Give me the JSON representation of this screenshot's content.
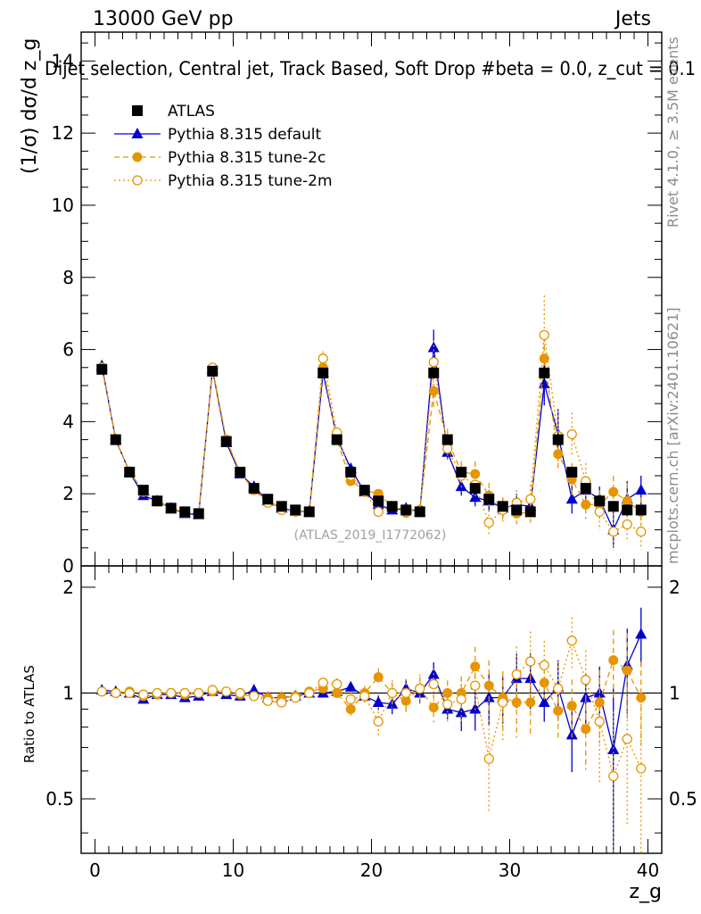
{
  "header": {
    "left": "13000 GeV pp",
    "right": "Jets",
    "title": "Dijet selection, Central jet, Track Based, Soft Drop #beta = 0.0, z_cut = 0.1",
    "side_left": "Rivet 4.1.0, ≥ 3.5M events",
    "side_right": "mcplots.cern.ch [arXiv:2401.10621]",
    "watermark": "(ATLAS_2019_I1772062)"
  },
  "colors": {
    "data": "#000000",
    "default": "#0000cc",
    "tune2c": "#e69500",
    "tune2m": "#e69500"
  },
  "chart_data": [
    {
      "type": "line",
      "panel": "main",
      "ylabel": "(1/σ) dσ/d z_g",
      "xlim": [
        -1,
        41
      ],
      "ylim": [
        0,
        14.8
      ],
      "x_ticks": [
        "0",
        "10",
        "20",
        "30",
        "40"
      ],
      "y_ticks": [
        "0",
        "2",
        "4",
        "6",
        "8",
        "10",
        "12",
        "14"
      ],
      "legend": [
        "ATLAS",
        "Pythia 8.315 default",
        "Pythia 8.315 tune-2c",
        "Pythia 8.315 tune-2m"
      ],
      "x": [
        0.5,
        1.5,
        2.5,
        3.5,
        4.5,
        5.5,
        6.5,
        7.5,
        8.5,
        9.5,
        10.5,
        11.5,
        12.5,
        13.5,
        14.5,
        15.5,
        16.5,
        17.5,
        18.5,
        19.5,
        20.5,
        21.5,
        22.5,
        23.5,
        24.5,
        25.5,
        26.5,
        27.5,
        28.5,
        29.5,
        30.5,
        31.5,
        32.5,
        33.5,
        34.5,
        35.5,
        36.5,
        37.5,
        38.5,
        39.5
      ],
      "series": [
        {
          "name": "ATLAS",
          "values": [
            5.45,
            3.5,
            2.6,
            2.1,
            1.8,
            1.6,
            1.5,
            1.45,
            5.4,
            3.45,
            2.6,
            2.15,
            1.85,
            1.65,
            1.55,
            1.5,
            5.35,
            3.5,
            2.6,
            2.1,
            1.8,
            1.65,
            1.55,
            1.5,
            5.35,
            3.5,
            2.6,
            2.15,
            1.85,
            1.65,
            1.55,
            1.5,
            5.35,
            3.5,
            2.6,
            2.15,
            1.8,
            1.65,
            1.55,
            1.55
          ],
          "errors": [
            0.05,
            0.05,
            0.05,
            0.05,
            0.04,
            0.04,
            0.04,
            0.04,
            0.06,
            0.05,
            0.05,
            0.05,
            0.04,
            0.04,
            0.04,
            0.04,
            0.1,
            0.08,
            0.07,
            0.06,
            0.06,
            0.06,
            0.06,
            0.06,
            0.15,
            0.12,
            0.1,
            0.1,
            0.1,
            0.1,
            0.1,
            0.1,
            0.2,
            0.2,
            0.15,
            0.15,
            0.15,
            0.15,
            0.15,
            0.15
          ]
        },
        {
          "name": "Pythia 8.315 default",
          "values": [
            5.55,
            3.5,
            2.6,
            1.95,
            1.8,
            1.6,
            1.45,
            1.42,
            5.45,
            3.42,
            2.55,
            2.2,
            1.8,
            1.6,
            1.52,
            1.5,
            5.35,
            3.55,
            2.7,
            2.05,
            1.7,
            1.55,
            1.6,
            1.5,
            6.05,
            3.15,
            2.2,
            1.9,
            1.8,
            1.6,
            1.7,
            1.65,
            5.05,
            3.65,
            1.85,
            2.1,
            1.85,
            1.0,
            1.85,
            2.1
          ],
          "errors": [
            0.05,
            0.05,
            0.05,
            0.05,
            0.04,
            0.04,
            0.04,
            0.04,
            0.06,
            0.05,
            0.05,
            0.05,
            0.04,
            0.04,
            0.04,
            0.04,
            0.1,
            0.08,
            0.08,
            0.08,
            0.08,
            0.1,
            0.1,
            0.1,
            0.5,
            0.2,
            0.25,
            0.25,
            0.3,
            0.25,
            0.3,
            0.3,
            0.6,
            0.7,
            0.4,
            0.35,
            0.35,
            0.5,
            0.5,
            0.4
          ]
        },
        {
          "name": "Pythia 8.315 tune-2c",
          "values": [
            5.5,
            3.5,
            2.62,
            2.05,
            1.78,
            1.6,
            1.48,
            1.45,
            5.45,
            3.5,
            2.58,
            2.1,
            1.8,
            1.6,
            1.52,
            1.52,
            5.5,
            3.5,
            2.35,
            2.1,
            2.0,
            1.65,
            1.47,
            1.55,
            4.85,
            3.5,
            2.6,
            2.55,
            1.95,
            1.6,
            1.45,
            1.5,
            5.75,
            3.1,
            2.4,
            1.7,
            1.7,
            2.05,
            1.8,
            1.5
          ],
          "errors": [
            0.05,
            0.05,
            0.05,
            0.05,
            0.04,
            0.04,
            0.04,
            0.04,
            0.06,
            0.05,
            0.05,
            0.05,
            0.04,
            0.04,
            0.04,
            0.04,
            0.12,
            0.1,
            0.1,
            0.1,
            0.12,
            0.12,
            0.12,
            0.12,
            0.45,
            0.3,
            0.3,
            0.35,
            0.35,
            0.3,
            0.3,
            0.3,
            0.6,
            0.5,
            0.45,
            0.4,
            0.4,
            0.45,
            0.5,
            0.4
          ]
        },
        {
          "name": "Pythia 8.315 tune-2m",
          "values": [
            5.5,
            3.5,
            2.6,
            2.08,
            1.8,
            1.6,
            1.5,
            1.45,
            5.5,
            3.5,
            2.6,
            2.1,
            1.75,
            1.55,
            1.5,
            1.5,
            5.75,
            3.7,
            2.5,
            2.05,
            1.5,
            1.65,
            1.55,
            1.55,
            5.65,
            3.25,
            2.5,
            2.25,
            1.2,
            1.55,
            1.75,
            1.85,
            6.4,
            3.6,
            3.65,
            2.35,
            1.5,
            0.95,
            1.15,
            0.95
          ],
          "errors": [
            0.05,
            0.05,
            0.05,
            0.05,
            0.04,
            0.04,
            0.04,
            0.04,
            0.06,
            0.05,
            0.05,
            0.05,
            0.04,
            0.04,
            0.04,
            0.04,
            0.2,
            0.15,
            0.12,
            0.12,
            0.15,
            0.15,
            0.15,
            0.15,
            0.6,
            0.35,
            0.35,
            0.35,
            0.35,
            0.35,
            0.35,
            0.4,
            1.1,
            0.7,
            0.6,
            0.5,
            0.5,
            0.5,
            0.5,
            0.5
          ]
        }
      ]
    },
    {
      "type": "line",
      "panel": "ratio",
      "xlabel": "z_g",
      "ylabel": "Ratio to ATLAS",
      "xlim": [
        -1,
        41
      ],
      "ylim": [
        0.35,
        2.3
      ],
      "x_ticks": [
        "0",
        "10",
        "20",
        "30",
        "40"
      ],
      "y_ticks": [
        "0.5",
        "1",
        "2"
      ],
      "y_tick_values": [
        0.5,
        1,
        2
      ],
      "x": [
        0.5,
        1.5,
        2.5,
        3.5,
        4.5,
        5.5,
        6.5,
        7.5,
        8.5,
        9.5,
        10.5,
        11.5,
        12.5,
        13.5,
        14.5,
        15.5,
        16.5,
        17.5,
        18.5,
        19.5,
        20.5,
        21.5,
        22.5,
        23.5,
        24.5,
        25.5,
        26.5,
        27.5,
        28.5,
        29.5,
        30.5,
        31.5,
        32.5,
        33.5,
        34.5,
        35.5,
        36.5,
        37.5,
        38.5,
        39.5
      ],
      "series": [
        {
          "name": "Pythia 8.315 default",
          "values": [
            1.02,
            1.01,
            1.0,
            0.96,
            0.99,
            0.99,
            0.97,
            0.98,
            1.01,
            0.99,
            0.98,
            1.02,
            0.97,
            0.97,
            0.98,
            1.0,
            1.0,
            1.01,
            1.04,
            0.98,
            0.94,
            0.93,
            1.03,
            1.0,
            1.13,
            0.9,
            0.88,
            0.9,
            0.97,
            0.97,
            1.1,
            1.1,
            0.94,
            1.04,
            0.76,
            0.97,
            1.0,
            0.69,
            1.2,
            1.47
          ]
        },
        {
          "name": "Pythia 8.315 tune-2c",
          "values": [
            1.01,
            1.0,
            1.01,
            0.98,
            0.99,
            1.0,
            0.99,
            1.0,
            1.01,
            1.01,
            0.99,
            0.98,
            0.97,
            0.97,
            0.98,
            1.01,
            1.03,
            1.0,
            0.9,
            1.0,
            1.11,
            1.0,
            0.95,
            1.03,
            0.91,
            1.0,
            1.0,
            1.19,
            1.05,
            0.97,
            0.94,
            0.94,
            1.07,
            0.89,
            0.92,
            0.79,
            0.94,
            1.24,
            1.16,
            0.97
          ]
        },
        {
          "name": "Pythia 8.315 tune-2m",
          "values": [
            1.01,
            1.0,
            1.0,
            0.99,
            1.0,
            1.0,
            1.0,
            1.0,
            1.02,
            1.01,
            1.0,
            0.98,
            0.95,
            0.94,
            0.97,
            1.0,
            1.07,
            1.06,
            0.96,
            0.98,
            0.83,
            1.0,
            1.0,
            1.03,
            1.06,
            0.93,
            0.96,
            1.05,
            0.65,
            0.94,
            1.13,
            1.23,
            1.2,
            1.03,
            1.41,
            1.09,
            0.83,
            0.58,
            0.74,
            0.61
          ]
        }
      ]
    }
  ]
}
